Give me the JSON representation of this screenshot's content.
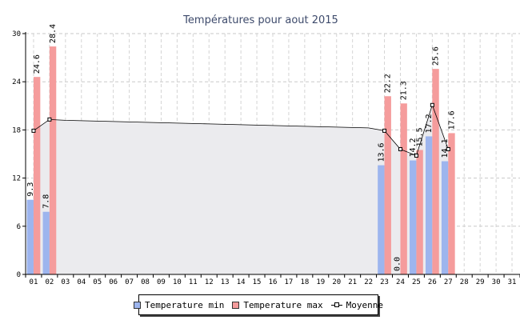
{
  "chart_data": {
    "type": "bar",
    "title": "Températures pour aout 2015",
    "categories": [
      "01",
      "02",
      "03",
      "04",
      "05",
      "06",
      "07",
      "08",
      "09",
      "10",
      "11",
      "12",
      "13",
      "14",
      "15",
      "16",
      "17",
      "18",
      "19",
      "20",
      "21",
      "22",
      "23",
      "24",
      "25",
      "26",
      "27",
      "28",
      "29",
      "30",
      "31"
    ],
    "ylim": [
      0,
      30
    ],
    "yticks": [
      0,
      6,
      12,
      18,
      24,
      30
    ],
    "grid": true,
    "legend_position": "bottom",
    "series": [
      {
        "name": "Temperature min",
        "type": "bar",
        "color": "#9db5ee",
        "values": [
          9.3,
          7.8,
          null,
          null,
          null,
          null,
          null,
          null,
          null,
          null,
          null,
          null,
          null,
          null,
          null,
          null,
          null,
          null,
          null,
          null,
          null,
          null,
          13.6,
          0.0,
          14.2,
          17.2,
          14.1,
          null,
          null,
          null,
          null
        ],
        "labels": [
          "9.3",
          "7.8",
          null,
          null,
          null,
          null,
          null,
          null,
          null,
          null,
          null,
          null,
          null,
          null,
          null,
          null,
          null,
          null,
          null,
          null,
          null,
          null,
          "13.6",
          "0.0",
          "14.2",
          "17.2",
          "14.1",
          null,
          null,
          null,
          null
        ]
      },
      {
        "name": "Temperature max",
        "type": "bar",
        "color": "#f59c9c",
        "values": [
          24.6,
          28.4,
          null,
          null,
          null,
          null,
          null,
          null,
          null,
          null,
          null,
          null,
          null,
          null,
          null,
          null,
          null,
          null,
          null,
          null,
          null,
          null,
          22.2,
          21.3,
          15.5,
          25.6,
          17.6,
          null,
          null,
          null,
          null
        ],
        "labels": [
          "24.6",
          "28.4",
          null,
          null,
          null,
          null,
          null,
          null,
          null,
          null,
          null,
          null,
          null,
          null,
          null,
          null,
          null,
          null,
          null,
          null,
          null,
          null,
          "22.2",
          "21.3",
          "15.5",
          "25.6",
          "17.6",
          null,
          null,
          null,
          null
        ]
      },
      {
        "name": "Moyenne",
        "type": "line",
        "color": "#000000",
        "fill": "#ebebee",
        "values": [
          17.9,
          19.3,
          19.2,
          19.15,
          19.1,
          19.05,
          19.0,
          18.95,
          18.9,
          18.85,
          18.8,
          18.75,
          18.7,
          18.65,
          18.6,
          18.55,
          18.5,
          18.45,
          18.4,
          18.35,
          18.3,
          18.25,
          17.9,
          15.6,
          14.8,
          21.1,
          15.6,
          null,
          null,
          null,
          null
        ],
        "markers": [
          true,
          true,
          false,
          false,
          false,
          false,
          false,
          false,
          false,
          false,
          false,
          false,
          false,
          false,
          false,
          false,
          false,
          false,
          false,
          false,
          false,
          false,
          true,
          true,
          true,
          true,
          true,
          false,
          false,
          false,
          false
        ]
      }
    ]
  }
}
